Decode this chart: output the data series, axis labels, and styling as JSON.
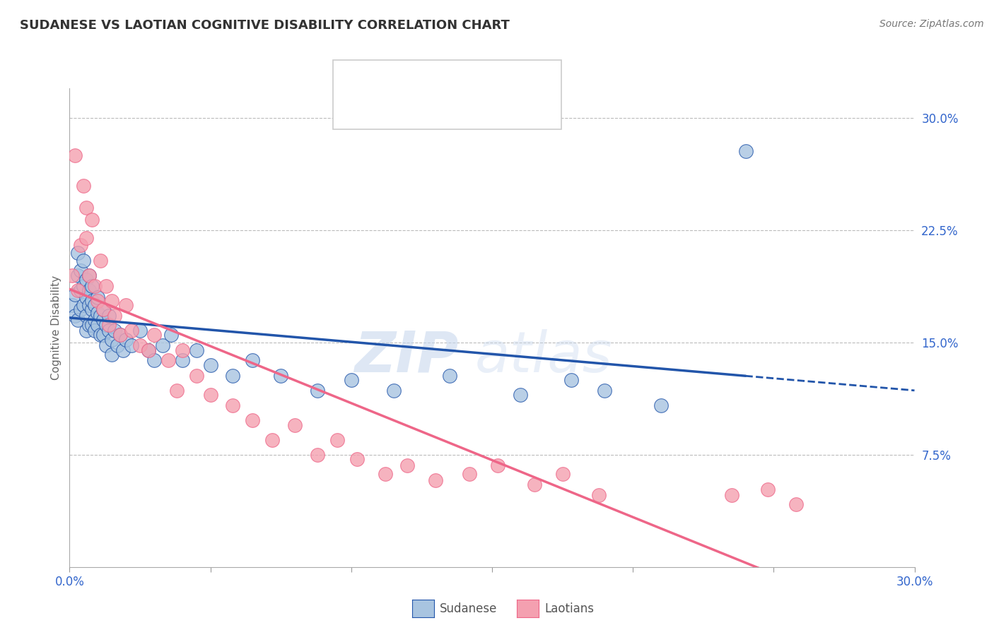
{
  "title": "SUDANESE VS LAOTIAN COGNITIVE DISABILITY CORRELATION CHART",
  "source": "Source: ZipAtlas.com",
  "ylabel": "Cognitive Disability",
  "xlim": [
    0.0,
    0.3
  ],
  "ylim": [
    0.0,
    0.32
  ],
  "ytick_positions": [
    0.075,
    0.15,
    0.225,
    0.3
  ],
  "ytick_labels": [
    "7.5%",
    "15.0%",
    "22.5%",
    "30.0%"
  ],
  "color_blue": "#A8C4E0",
  "color_pink": "#F4A0B0",
  "line_blue": "#2255AA",
  "line_pink": "#EE6688",
  "watermark_zip": "ZIP",
  "watermark_atlas": "atlas",
  "background_color": "#FFFFFF",
  "grid_color": "#BBBBBB",
  "sudanese_x": [
    0.001,
    0.002,
    0.002,
    0.003,
    0.003,
    0.003,
    0.004,
    0.004,
    0.004,
    0.005,
    0.005,
    0.005,
    0.006,
    0.006,
    0.006,
    0.006,
    0.007,
    0.007,
    0.007,
    0.007,
    0.008,
    0.008,
    0.008,
    0.008,
    0.009,
    0.009,
    0.009,
    0.01,
    0.01,
    0.01,
    0.011,
    0.011,
    0.012,
    0.012,
    0.012,
    0.013,
    0.013,
    0.014,
    0.014,
    0.015,
    0.015,
    0.016,
    0.017,
    0.018,
    0.019,
    0.02,
    0.022,
    0.025,
    0.028,
    0.03,
    0.033,
    0.036,
    0.04,
    0.045,
    0.05,
    0.058,
    0.065,
    0.075,
    0.088,
    0.1,
    0.115,
    0.135,
    0.16,
    0.178,
    0.19,
    0.21,
    0.24
  ],
  "sudanese_y": [
    0.175,
    0.168,
    0.182,
    0.195,
    0.21,
    0.165,
    0.185,
    0.172,
    0.198,
    0.188,
    0.175,
    0.205,
    0.18,
    0.192,
    0.168,
    0.158,
    0.185,
    0.175,
    0.162,
    0.195,
    0.172,
    0.162,
    0.178,
    0.188,
    0.165,
    0.175,
    0.158,
    0.17,
    0.162,
    0.18,
    0.168,
    0.155,
    0.165,
    0.155,
    0.172,
    0.162,
    0.148,
    0.158,
    0.168,
    0.152,
    0.142,
    0.158,
    0.148,
    0.155,
    0.145,
    0.152,
    0.148,
    0.158,
    0.145,
    0.138,
    0.148,
    0.155,
    0.138,
    0.145,
    0.135,
    0.128,
    0.138,
    0.128,
    0.118,
    0.125,
    0.118,
    0.128,
    0.115,
    0.125,
    0.118,
    0.108,
    0.278
  ],
  "laotian_x": [
    0.001,
    0.002,
    0.003,
    0.004,
    0.005,
    0.006,
    0.006,
    0.007,
    0.008,
    0.009,
    0.01,
    0.011,
    0.012,
    0.013,
    0.014,
    0.015,
    0.016,
    0.018,
    0.02,
    0.022,
    0.025,
    0.028,
    0.03,
    0.035,
    0.038,
    0.04,
    0.045,
    0.05,
    0.058,
    0.065,
    0.072,
    0.08,
    0.088,
    0.095,
    0.102,
    0.112,
    0.12,
    0.13,
    0.142,
    0.152,
    0.165,
    0.175,
    0.188,
    0.235,
    0.248,
    0.258
  ],
  "laotian_y": [
    0.195,
    0.275,
    0.185,
    0.215,
    0.255,
    0.24,
    0.22,
    0.195,
    0.232,
    0.188,
    0.178,
    0.205,
    0.172,
    0.188,
    0.162,
    0.178,
    0.168,
    0.155,
    0.175,
    0.158,
    0.148,
    0.145,
    0.155,
    0.138,
    0.118,
    0.145,
    0.128,
    0.115,
    0.108,
    0.098,
    0.085,
    0.095,
    0.075,
    0.085,
    0.072,
    0.062,
    0.068,
    0.058,
    0.062,
    0.068,
    0.055,
    0.062,
    0.048,
    0.048,
    0.052,
    0.042
  ]
}
